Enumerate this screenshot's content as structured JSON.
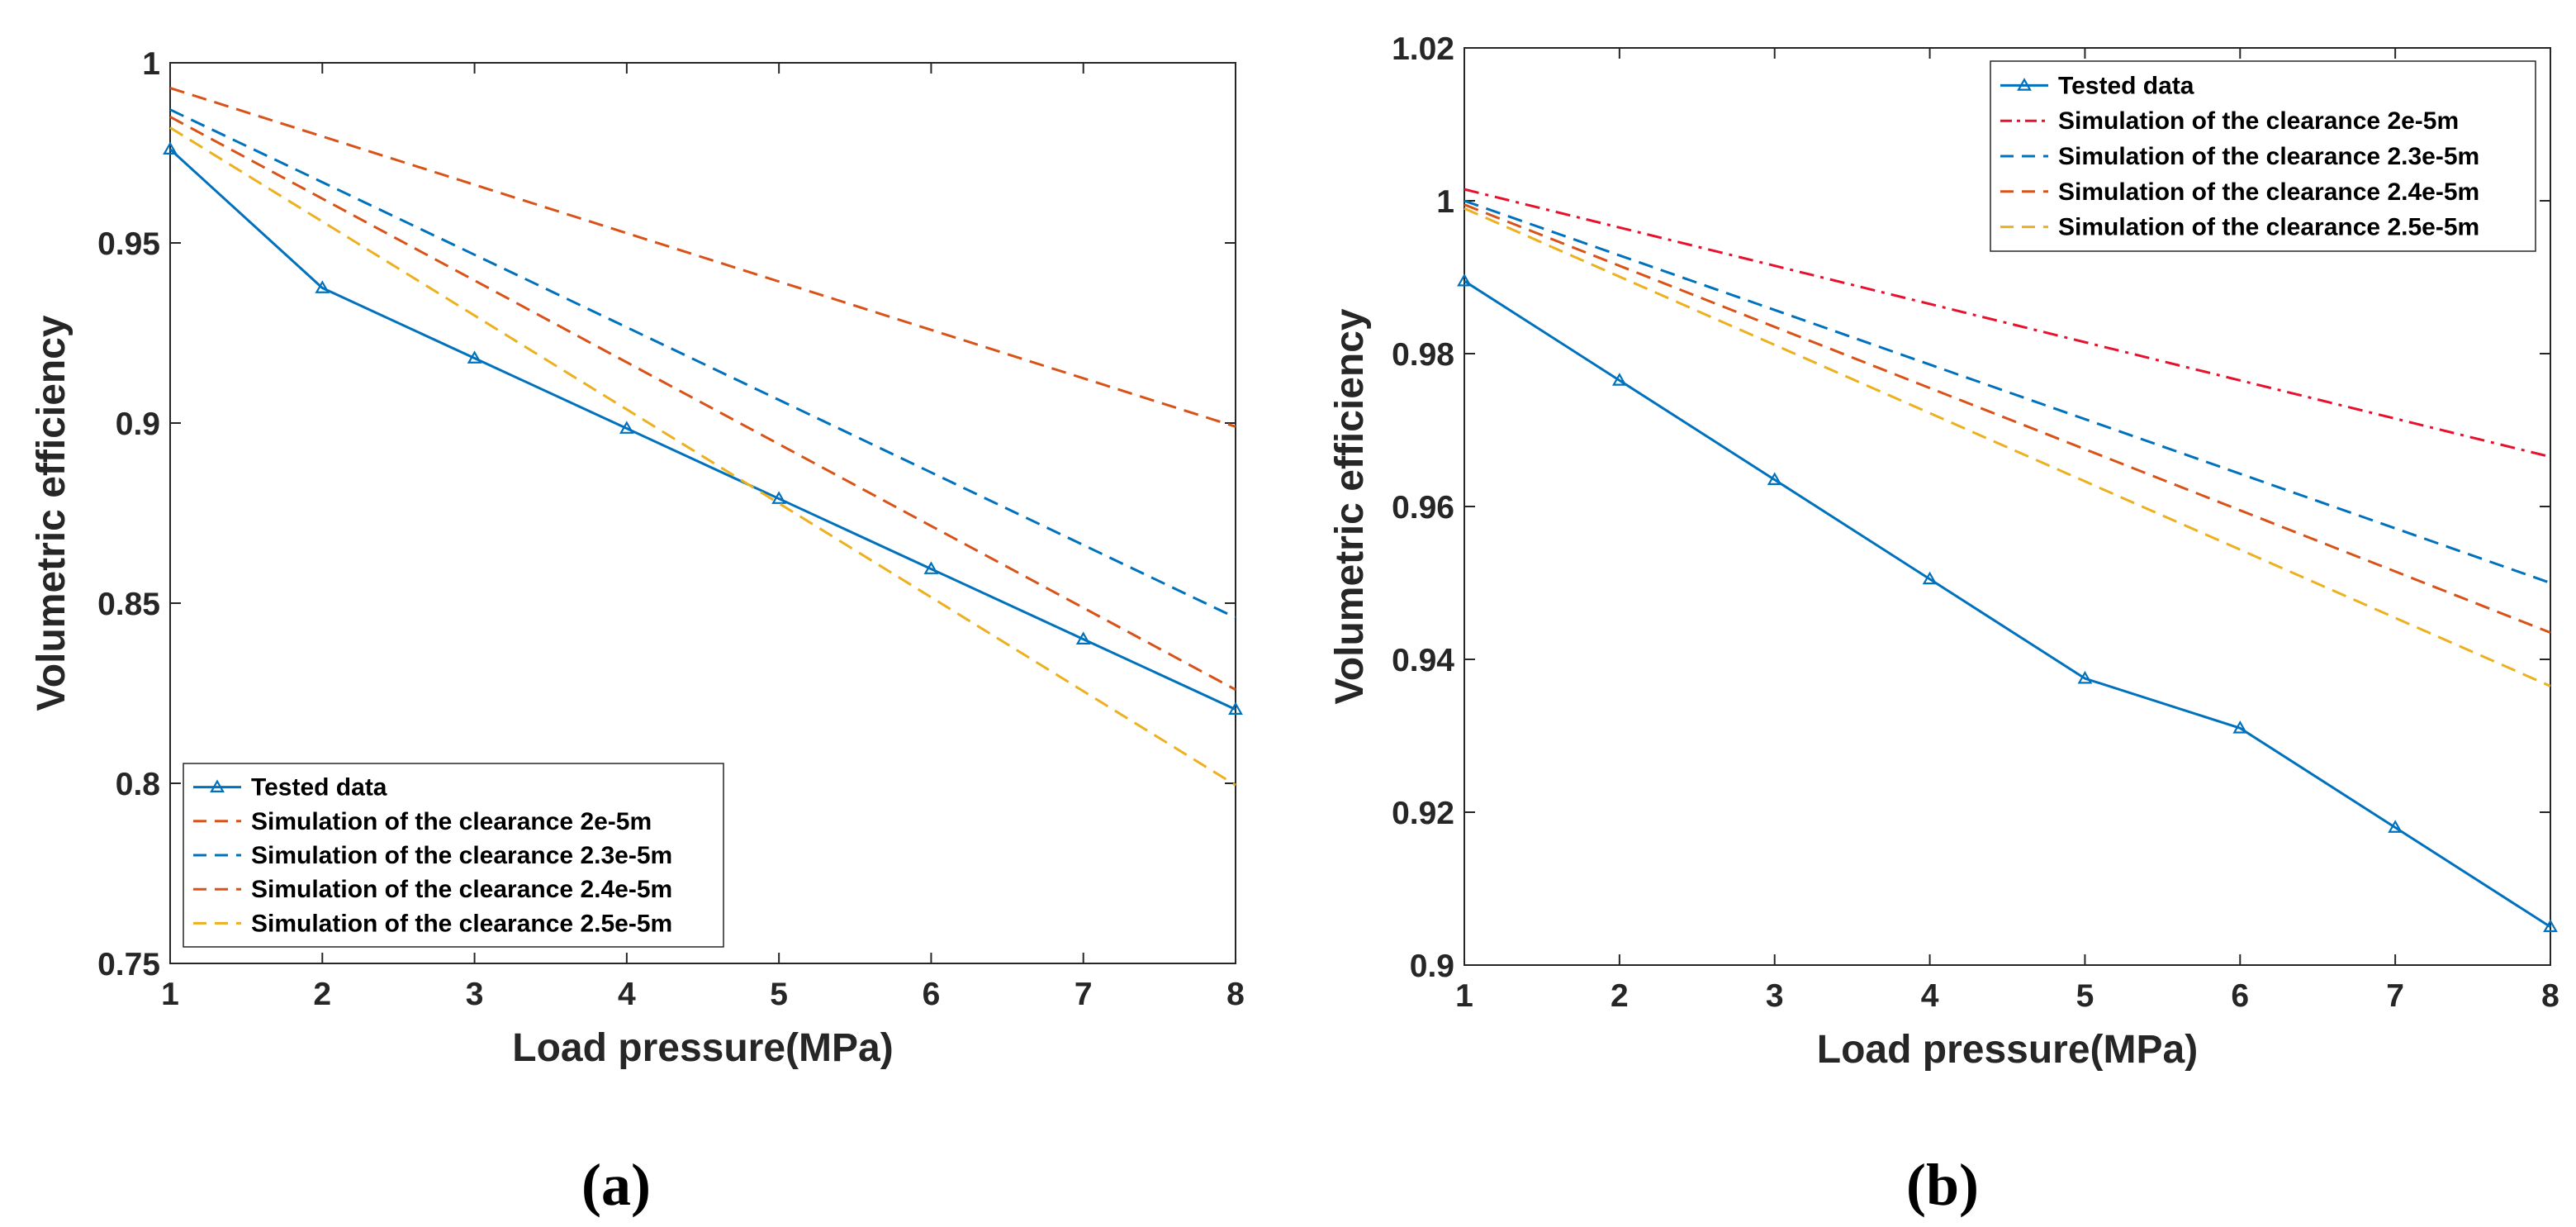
{
  "chart_data": [
    {
      "type": "line",
      "panel_label": "(a)",
      "xlabel": "Load pressure(MPa)",
      "ylabel": "Volumetric efficiency",
      "xlim": [
        1,
        8
      ],
      "ylim": [
        0.75,
        1
      ],
      "xticks": [
        1,
        2,
        3,
        4,
        5,
        6,
        7,
        8
      ],
      "yticks": [
        0.75,
        0.8,
        0.85,
        0.9,
        0.95,
        1
      ],
      "ytick_labels": [
        "0.75",
        "0.8",
        "0.85",
        "0.9",
        "0.95",
        "1"
      ],
      "legend_position": "bottom-left",
      "series": [
        {
          "name": "Tested data",
          "color": "#0072BD",
          "style": "solid-triangle",
          "x": [
            1,
            2,
            3,
            4,
            5,
            6,
            7,
            8
          ],
          "y": [
            0.976,
            0.9375,
            0.918,
            0.8985,
            0.879,
            0.8595,
            0.84,
            0.8205
          ]
        },
        {
          "name": "Simulation of the clearance 2e-5m",
          "color": "#D95319",
          "style": "dashed",
          "x": [
            1,
            8
          ],
          "y": [
            0.993,
            0.899
          ]
        },
        {
          "name": "Simulation of the clearance 2.3e-5m",
          "color": "#0072BD",
          "style": "dashed",
          "x": [
            1,
            8
          ],
          "y": [
            0.987,
            0.846
          ]
        },
        {
          "name": "Simulation of the clearance 2.4e-5m",
          "color": "#D95319",
          "style": "dashed",
          "x": [
            1,
            8
          ],
          "y": [
            0.985,
            0.826
          ]
        },
        {
          "name": "Simulation of the clearance 2.5e-5m",
          "color": "#EDB120",
          "style": "dashed",
          "x": [
            1,
            8
          ],
          "y": [
            0.982,
            0.7995
          ]
        }
      ]
    },
    {
      "type": "line",
      "panel_label": "(b)",
      "xlabel": "Load pressure(MPa)",
      "ylabel": "Volumetric efficiency",
      "xlim": [
        1,
        8
      ],
      "ylim": [
        0.9,
        1.02
      ],
      "xticks": [
        1,
        2,
        3,
        4,
        5,
        6,
        7,
        8
      ],
      "yticks": [
        0.9,
        0.92,
        0.94,
        0.96,
        0.98,
        1,
        1.02
      ],
      "ytick_labels": [
        "0.9",
        "0.92",
        "0.94",
        "0.96",
        "0.98",
        "1",
        "1.02"
      ],
      "legend_position": "top-right",
      "series": [
        {
          "name": "Tested data",
          "color": "#0072BD",
          "style": "solid-triangle",
          "x": [
            1,
            2,
            3,
            4,
            5,
            6,
            7,
            8
          ],
          "y": [
            0.9895,
            0.9765,
            0.9635,
            0.9505,
            0.9375,
            0.931,
            0.918,
            0.905
          ]
        },
        {
          "name": "Simulation of the clearance 2e-5m",
          "color": "#E8112D",
          "style": "dashdot",
          "x": [
            1,
            8
          ],
          "y": [
            1.0015,
            0.9665
          ]
        },
        {
          "name": "Simulation of the clearance 2.3e-5m",
          "color": "#0072BD",
          "style": "dashed",
          "x": [
            1,
            8
          ],
          "y": [
            1.0,
            0.95
          ]
        },
        {
          "name": "Simulation of the clearance 2.4e-5m",
          "color": "#D95319",
          "style": "dashed",
          "x": [
            1,
            8
          ],
          "y": [
            0.9995,
            0.9435
          ]
        },
        {
          "name": "Simulation of the clearance 2.5e-5m",
          "color": "#EDB120",
          "style": "dashed",
          "x": [
            1,
            8
          ],
          "y": [
            0.999,
            0.9365
          ]
        }
      ]
    }
  ]
}
